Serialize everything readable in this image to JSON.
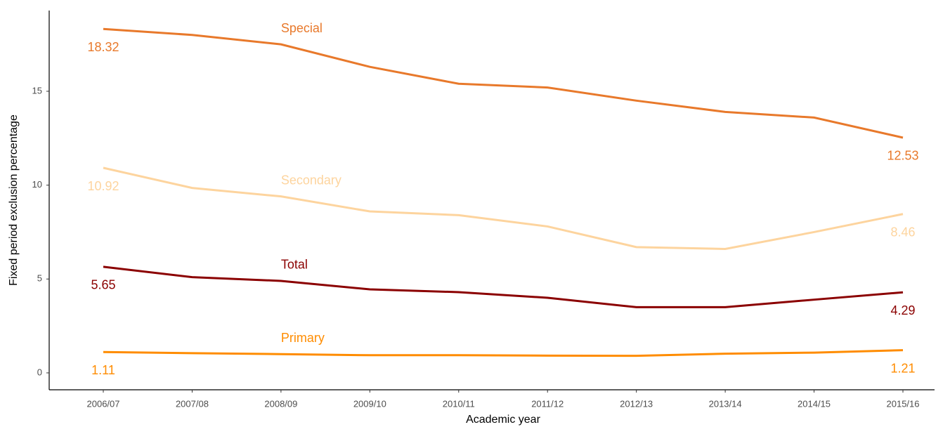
{
  "chart_data": {
    "type": "line",
    "x_label": "Academic year",
    "y_label": "Fixed period exclusion percentage",
    "categories": [
      "2006/07",
      "2007/08",
      "2008/09",
      "2009/10",
      "2010/11",
      "2011/12",
      "2012/13",
      "2013/14",
      "2014/15",
      "2015/16"
    ],
    "series": [
      {
        "name": "Special",
        "color": "#e8792b",
        "values": [
          18.32,
          18.0,
          17.5,
          16.3,
          15.4,
          15.2,
          14.5,
          13.9,
          13.6,
          12.53
        ]
      },
      {
        "name": "Secondary",
        "color": "#fdd49e",
        "values": [
          10.92,
          9.85,
          9.4,
          8.6,
          8.4,
          7.8,
          6.7,
          6.6,
          7.5,
          8.46
        ]
      },
      {
        "name": "Total",
        "color": "#8b0000",
        "values": [
          5.65,
          5.1,
          4.9,
          4.45,
          4.3,
          4.0,
          3.5,
          3.5,
          3.9,
          4.29
        ]
      },
      {
        "name": "Primary",
        "color": "#ff8c00",
        "values": [
          1.11,
          1.05,
          1.0,
          0.94,
          0.94,
          0.92,
          0.91,
          1.02,
          1.08,
          1.21
        ]
      }
    ],
    "ylim": [
      -0.9,
      19.3
    ],
    "yticks": [
      0,
      5,
      10,
      15
    ],
    "grid": false
  }
}
